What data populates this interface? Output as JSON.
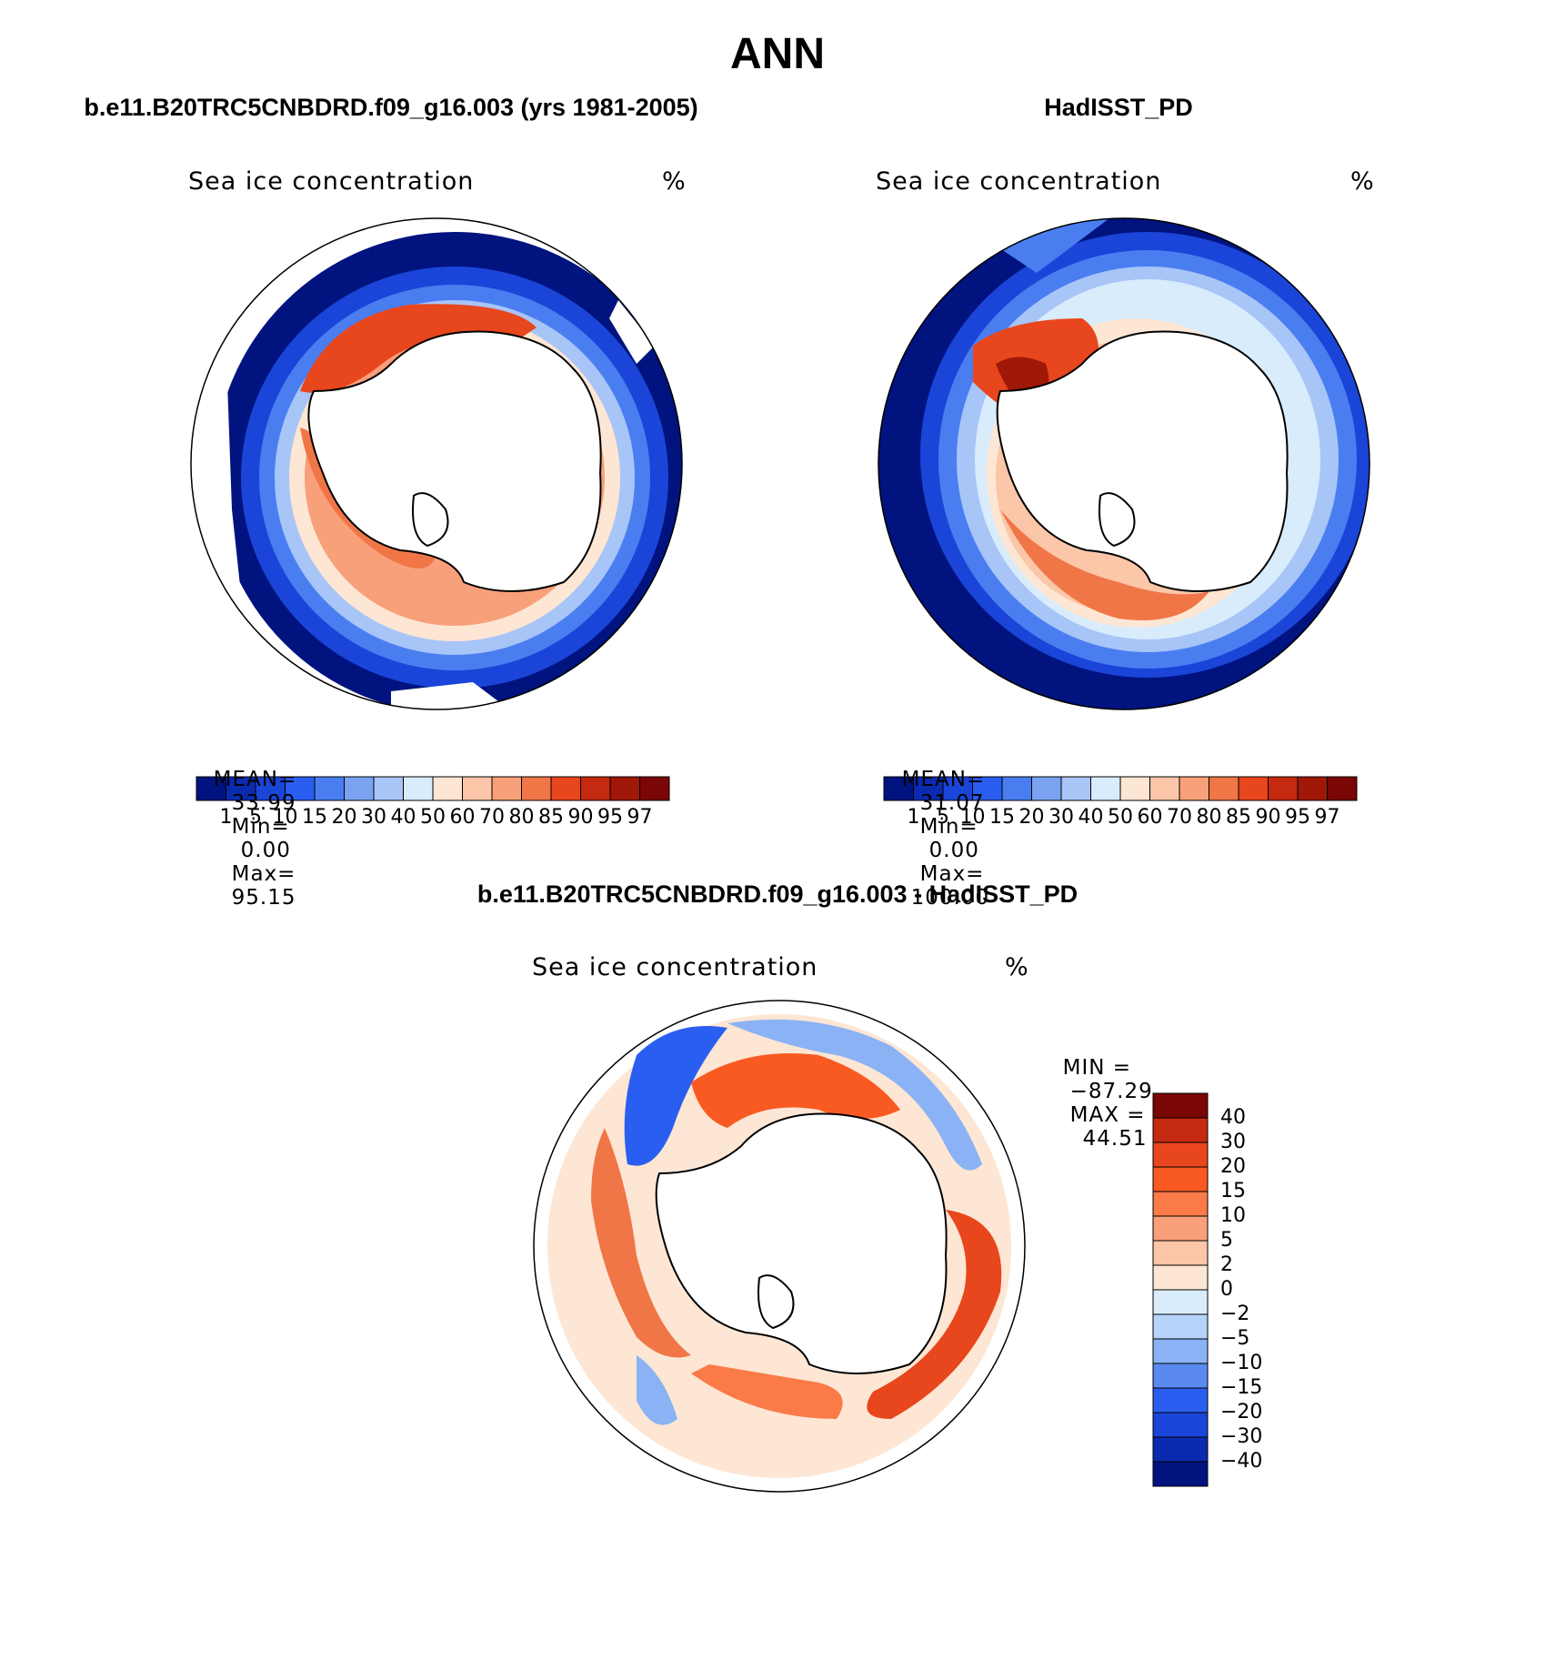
{
  "page_title": "ANN",
  "panels": [
    {
      "title": "b.e11.B20TRC5CNBDRD.f09_g16.003 (yrs 1981-2005)",
      "variable": "Sea ice concentration",
      "units": "%",
      "stats": {
        "mean_label": "MEAN=",
        "mean": "33.99",
        "min_label": "Min=",
        "min": "0.00",
        "max_label": "Max=",
        "max": "95.15"
      }
    },
    {
      "title": "HadISST_PD",
      "variable": "Sea ice concentration",
      "units": "%",
      "stats": {
        "mean_label": "MEAN=",
        "mean": "31.07",
        "min_label": "Min=",
        "min": "0.00",
        "max_label": "Max=",
        "max": "100.00"
      }
    }
  ],
  "diff_panel": {
    "title": "b.e11.B20TRC5CNBDRD.f09_g16.003 - HadISST_PD",
    "variable": "Sea ice concentration",
    "units": "%",
    "minmax": {
      "min_label": "MIN =",
      "min": "−87.29",
      "max_label": "MAX =",
      "max": "44.51"
    }
  },
  "abs_colorbar": {
    "labels": [
      "1",
      "5",
      "10",
      "15",
      "20",
      "30",
      "40",
      "50",
      "60",
      "70",
      "80",
      "85",
      "90",
      "95",
      "97"
    ],
    "colors": [
      "#00137f",
      "#0a2bb0",
      "#1a45d8",
      "#2a5ef0",
      "#4a7ef0",
      "#7aa2f0",
      "#a8c5f8",
      "#d8ecfc",
      "#fde6d4",
      "#fcc6a8",
      "#f8a07a",
      "#f07648",
      "#e8461c",
      "#c42a10",
      "#a01808",
      "#7a0606"
    ]
  },
  "diff_colorbar": {
    "labels": [
      "40",
      "30",
      "20",
      "15",
      "10",
      "5",
      "2",
      "0",
      "−2",
      "−5",
      "−10",
      "−15",
      "−20",
      "−30",
      "−40"
    ],
    "colors": [
      "#7a0606",
      "#c42a10",
      "#e8461c",
      "#f85a22",
      "#fa7a48",
      "#f8a07a",
      "#fcc6a8",
      "#fde6d4",
      "#d8ecfc",
      "#b6d4fa",
      "#8ab2f4",
      "#5a8af0",
      "#2a5ef0",
      "#1a45d8",
      "#0a2bb0",
      "#00137f"
    ]
  }
}
